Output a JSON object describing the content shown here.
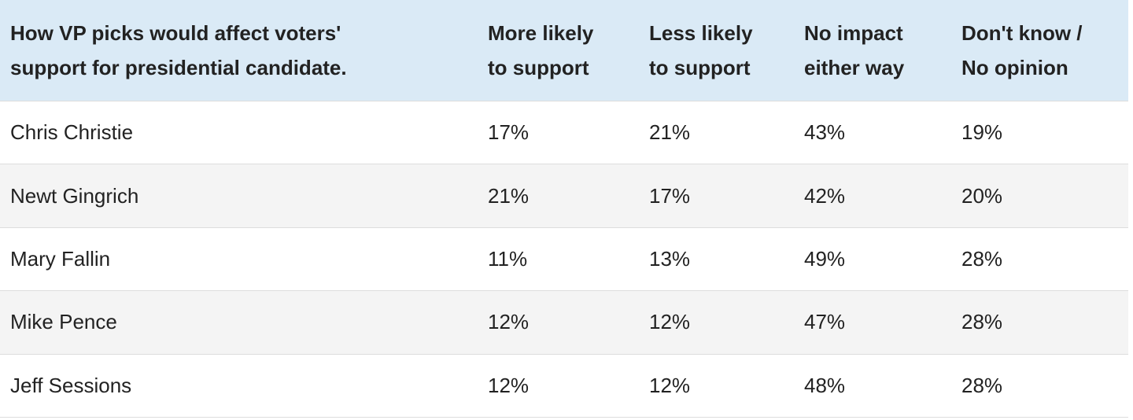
{
  "table": {
    "header": [
      [
        "How VP picks would affect voters'",
        "support for presidential candidate."
      ],
      [
        "More likely",
        "to support"
      ],
      [
        "Less likely",
        "to support"
      ],
      [
        "No impact",
        "either way"
      ],
      [
        "Don't know /",
        "No opinion"
      ]
    ],
    "rows": [
      [
        "Chris Christie",
        "17%",
        "21%",
        "43%",
        "19%"
      ],
      [
        "Newt Gingrich",
        "21%",
        "17%",
        "42%",
        "20%"
      ],
      [
        "Mary Fallin",
        "11%",
        "13%",
        "49%",
        "28%"
      ],
      [
        "Mike Pence",
        "12%",
        "12%",
        "47%",
        "28%"
      ],
      [
        "Jeff Sessions",
        "12%",
        "12%",
        "48%",
        "28%"
      ]
    ]
  }
}
